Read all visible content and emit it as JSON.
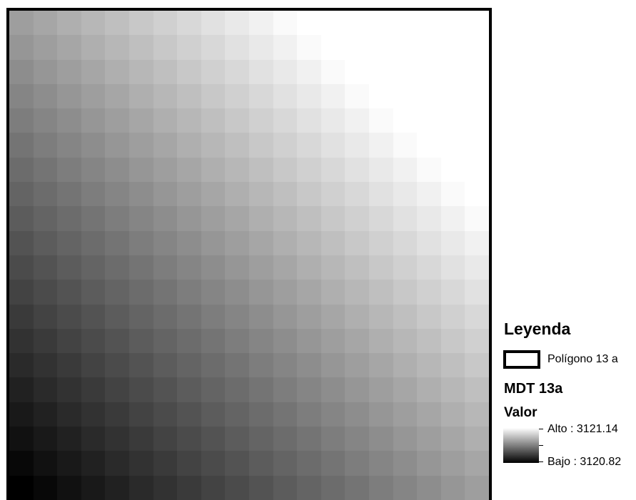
{
  "map": {
    "raster_rows": 20,
    "raster_cols": 20,
    "elevation_min": 3120.82,
    "elevation_max": 3121.14,
    "ramp_colors": [
      "#000000",
      "#ffffff"
    ]
  },
  "legend": {
    "title": "Leyenda",
    "polygon_label": "Polígono 13 a",
    "layer_name": "MDT 13a",
    "field_name": "Valor",
    "high_label": "Alto : 3121.14",
    "low_label": "Bajo : 3120.82"
  }
}
